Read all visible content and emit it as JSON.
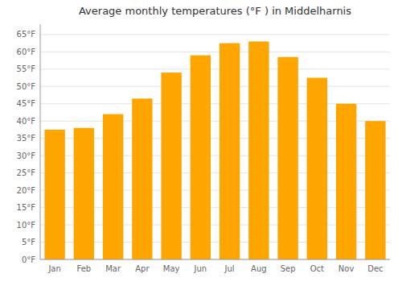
{
  "chart_data": {
    "type": "bar",
    "title": "Average monthly temperatures (°F ) in Middelharnis",
    "categories": [
      "Jan",
      "Feb",
      "Mar",
      "Apr",
      "May",
      "Jun",
      "Jul",
      "Aug",
      "Sep",
      "Oct",
      "Nov",
      "Dec"
    ],
    "values": [
      37.5,
      38,
      42,
      46.5,
      54,
      59,
      62.5,
      63,
      58.5,
      52.5,
      45,
      40
    ],
    "color": "#FFA500",
    "ylim": [
      0,
      68
    ],
    "yticks": [
      {
        "value": 0,
        "label": "0°F"
      },
      {
        "value": 5,
        "label": "5°F"
      },
      {
        "value": 10,
        "label": "10°F"
      },
      {
        "value": 15,
        "label": "15°F"
      },
      {
        "value": 20,
        "label": "20°F"
      },
      {
        "value": 25,
        "label": "25°F"
      },
      {
        "value": 30,
        "label": "30°F"
      },
      {
        "value": 35,
        "label": "35°F"
      },
      {
        "value": 40,
        "label": "40°F"
      },
      {
        "value": 45,
        "label": "45°F"
      },
      {
        "value": 50,
        "label": "50°F"
      },
      {
        "value": 55,
        "label": "55°F"
      },
      {
        "value": 60,
        "label": "60°F"
      },
      {
        "value": 65,
        "label": "65°F"
      }
    ],
    "grid": true
  }
}
